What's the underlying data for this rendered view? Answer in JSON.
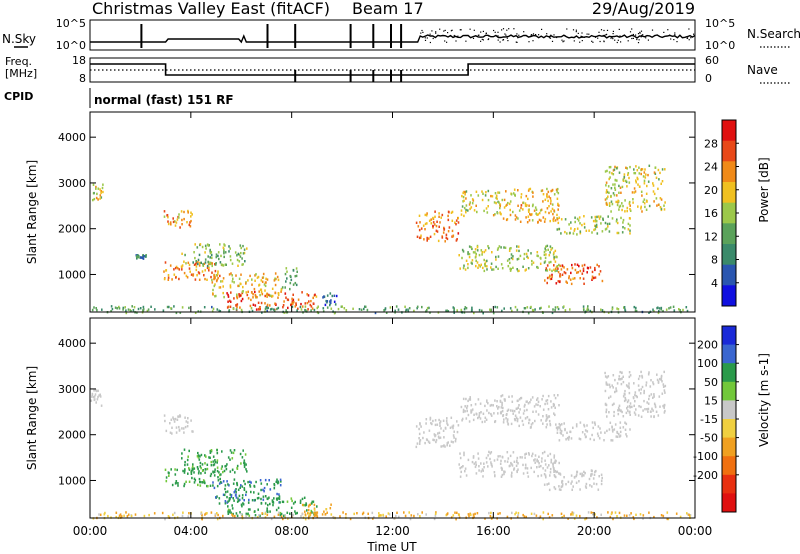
{
  "header": {
    "station": "Christmas Valley East (fitACF)",
    "beam": "Beam 17",
    "date": "29/Aug/2019"
  },
  "strips": {
    "nsky_label": "N.Sky",
    "nsky_ticks": [
      "10^5",
      "10^0"
    ],
    "nsearch_label": "N.Search",
    "nsearch_ticks": [
      "10^5",
      "10^0"
    ],
    "freq_label_1": "Freq.",
    "freq_label_2": "[MHz]",
    "freq_ticks": [
      "18",
      "8"
    ],
    "nave_label": "Nave",
    "nave_ticks": [
      "60",
      "0"
    ],
    "cpid_label": "CPID",
    "cpid_text": "normal (fast) 151 RF"
  },
  "colors": {
    "power_scale": [
      "#1010e0",
      "#2a56b0",
      "#3a8a6a",
      "#5aa25a",
      "#9cc84a",
      "#f0c020",
      "#f08a18",
      "#e84818",
      "#e01010"
    ],
    "velocity_scale": [
      "#1a2ad8",
      "#3a66d0",
      "#2a9a4a",
      "#72c83a",
      "#c8c8c8",
      "#f0d040",
      "#f0a020",
      "#f07010",
      "#e83010",
      "#e01010"
    ]
  },
  "chart_data": [
    {
      "type": "heatmap",
      "name": "power-panel",
      "xlabel": "",
      "ylabel": "Slant Range [km]",
      "x_ticks": [
        "00:00",
        "04:00",
        "08:00",
        "12:00",
        "16:00",
        "20:00",
        "00:00"
      ],
      "y_ticks": [
        1000,
        2000,
        3000,
        4000
      ],
      "xlim_hours": [
        0,
        24
      ],
      "ylim_km": [
        180,
        4550
      ],
      "colorbar_label": "Power [dB]",
      "colorbar_ticks": [
        "4",
        "8",
        "12",
        "16",
        "20",
        "24",
        "28"
      ],
      "colorbar_range": [
        0,
        32
      ],
      "regions": [
        {
          "t": [
            0.0,
            0.5
          ],
          "r": [
            2650,
            3000
          ],
          "v": 18
        },
        {
          "t": [
            2.9,
            4.1
          ],
          "r": [
            2050,
            2450
          ],
          "v": 22
        },
        {
          "t": [
            1.8,
            2.2
          ],
          "r": [
            1350,
            1450
          ],
          "v": 8
        },
        {
          "t": [
            2.9,
            5.3
          ],
          "r": [
            900,
            1300
          ],
          "v": 24
        },
        {
          "t": [
            3.6,
            6.2
          ],
          "r": [
            1200,
            1700
          ],
          "v": 14
        },
        {
          "t": [
            4.8,
            7.6
          ],
          "r": [
            520,
            1050
          ],
          "v": 20
        },
        {
          "t": [
            5.4,
            9.0
          ],
          "r": [
            250,
            650
          ],
          "v": 26
        },
        {
          "t": [
            7.6,
            8.2
          ],
          "r": [
            700,
            1200
          ],
          "v": 12
        },
        {
          "t": [
            9.2,
            9.8
          ],
          "r": [
            280,
            620
          ],
          "v": 6
        },
        {
          "t": [
            12.9,
            14.6
          ],
          "r": [
            1750,
            2400
          ],
          "v": 24
        },
        {
          "t": [
            14.7,
            16.3
          ],
          "r": [
            2300,
            2850
          ],
          "v": 18
        },
        {
          "t": [
            16.2,
            18.6
          ],
          "r": [
            2150,
            2900
          ],
          "v": 20
        },
        {
          "t": [
            14.6,
            18.6
          ],
          "r": [
            1100,
            1650
          ],
          "v": 16
        },
        {
          "t": [
            18.0,
            20.3
          ],
          "r": [
            800,
            1250
          ],
          "v": 26
        },
        {
          "t": [
            18.5,
            21.4
          ],
          "r": [
            1900,
            2300
          ],
          "v": 16
        },
        {
          "t": [
            20.4,
            22.8
          ],
          "r": [
            2400,
            3400
          ],
          "v": 18
        },
        {
          "t": [
            0.0,
            24.0
          ],
          "r": [
            180,
            330
          ],
          "v": 12
        }
      ]
    },
    {
      "type": "heatmap",
      "name": "velocity-panel",
      "xlabel": "Time UT",
      "ylabel": "Slant Range [km]",
      "x_ticks": [
        "00:00",
        "04:00",
        "08:00",
        "12:00",
        "16:00",
        "20:00",
        "00:00"
      ],
      "y_ticks": [
        1000,
        2000,
        3000,
        4000
      ],
      "xlim_hours": [
        0,
        24
      ],
      "ylim_km": [
        180,
        4550
      ],
      "colorbar_label": "Velocity [m s-1]",
      "colorbar_ticks": [
        "200",
        "100",
        "50",
        "15",
        "-15",
        "-50",
        "-100",
        "-200"
      ],
      "colorbar_range": [
        -250,
        250
      ],
      "regions": [
        {
          "t": [
            0.0,
            0.5
          ],
          "r": [
            2650,
            3000
          ],
          "v": 0
        },
        {
          "t": [
            2.9,
            4.1
          ],
          "r": [
            2050,
            2450
          ],
          "v": 0
        },
        {
          "t": [
            2.9,
            5.3
          ],
          "r": [
            900,
            1300
          ],
          "v": 40
        },
        {
          "t": [
            3.6,
            6.2
          ],
          "r": [
            1200,
            1700
          ],
          "v": 40
        },
        {
          "t": [
            4.8,
            7.6
          ],
          "r": [
            520,
            1050
          ],
          "v": 60
        },
        {
          "t": [
            5.4,
            9.0
          ],
          "r": [
            250,
            650
          ],
          "v": 40
        },
        {
          "t": [
            8.2,
            9.6
          ],
          "r": [
            250,
            500
          ],
          "v": -60
        },
        {
          "t": [
            12.9,
            14.6
          ],
          "r": [
            1750,
            2400
          ],
          "v": 0
        },
        {
          "t": [
            14.7,
            16.3
          ],
          "r": [
            2300,
            2850
          ],
          "v": 0
        },
        {
          "t": [
            16.2,
            18.6
          ],
          "r": [
            2150,
            2900
          ],
          "v": 0
        },
        {
          "t": [
            14.6,
            18.6
          ],
          "r": [
            1100,
            1650
          ],
          "v": 0
        },
        {
          "t": [
            18.0,
            20.3
          ],
          "r": [
            800,
            1250
          ],
          "v": 0
        },
        {
          "t": [
            18.5,
            21.4
          ],
          "r": [
            1900,
            2300
          ],
          "v": 0
        },
        {
          "t": [
            20.4,
            22.8
          ],
          "r": [
            2400,
            3400
          ],
          "v": 0
        },
        {
          "t": [
            0.0,
            24.0
          ],
          "r": [
            180,
            330
          ],
          "v": -40
        }
      ]
    }
  ]
}
